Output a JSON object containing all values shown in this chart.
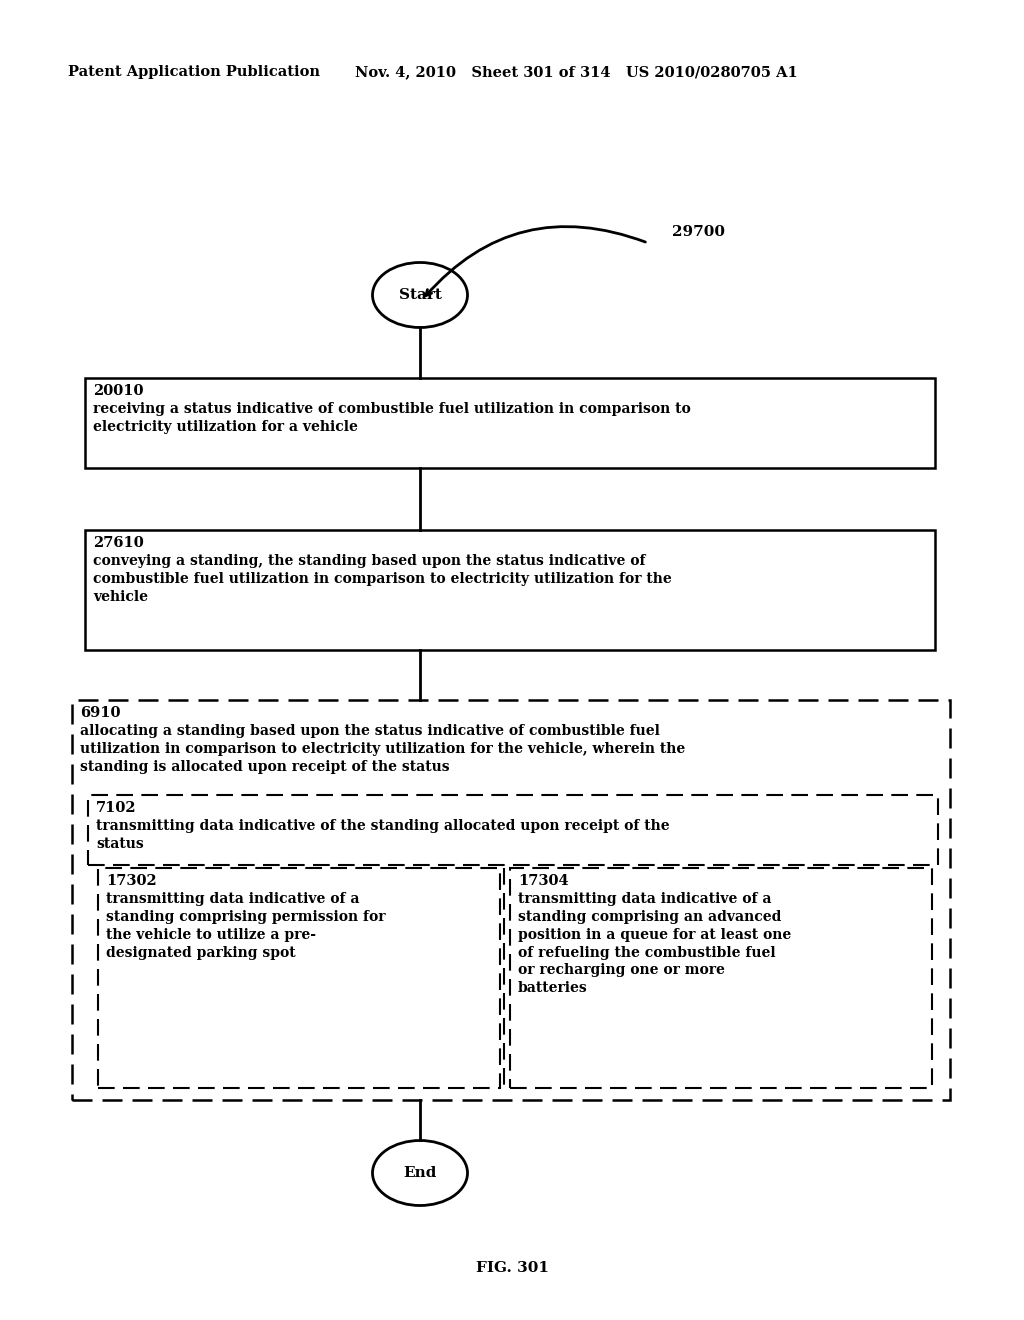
{
  "title_left": "Patent Application Publication",
  "title_right": "Nov. 4, 2010   Sheet 301 of 314   US 2010/0280705 A1",
  "fig_label": "FIG. 301",
  "diagram_label": "29700",
  "start_label": "Start",
  "end_label": "End",
  "box1_id": "20010",
  "box1_text": "receiving a status indicative of combustible fuel utilization in comparison to\nelectricity utilization for a vehicle",
  "box2_id": "27610",
  "box2_text": "conveying a standing, the standing based upon the status indicative of\ncombustible fuel utilization in comparison to electricity utilization for the\nvehicle",
  "outer_dashed_id": "6910",
  "outer_dashed_text": "allocating a standing based upon the status indicative of combustible fuel\nutilization in comparison to electricity utilization for the vehicle, wherein the\nstanding is allocated upon receipt of the status",
  "mid_dashed_id": "7102",
  "mid_dashed_text": "transmitting data indicative of the standing allocated upon receipt of the\nstatus",
  "left_box_id": "17302",
  "left_box_text": "transmitting data indicative of a\nstanding comprising permission for\nthe vehicle to utilize a pre-\ndesignated parking spot",
  "right_box_id": "17304",
  "right_box_text": "transmitting data indicative of a\nstanding comprising an advanced\nposition in a queue for at least one\nof refueling the combustible fuel\nor recharging one or more\nbatteries",
  "bg_color": "#ffffff",
  "text_color": "#000000"
}
